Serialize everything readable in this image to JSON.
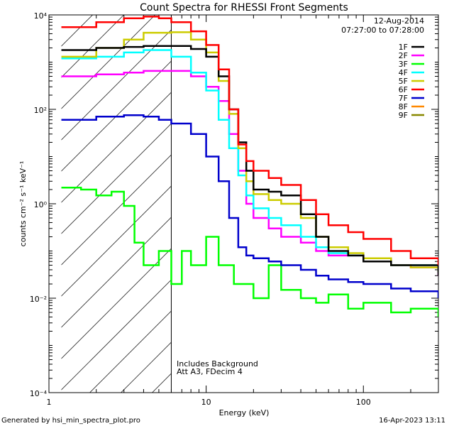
{
  "chart_data": {
    "type": "line",
    "title": "Count Spectra for RHESSI Front Segments",
    "xlabel": "Energy (keV)",
    "ylabel": "counts cm⁻² s⁻¹ keV⁻¹",
    "xscale": "log",
    "yscale": "log",
    "xlim": [
      1,
      300
    ],
    "ylim": [
      0.0001,
      10000
    ],
    "x_ticks": [
      {
        "value": 1,
        "label": "1"
      },
      {
        "value": 10,
        "label": "10"
      },
      {
        "value": 100,
        "label": "100"
      }
    ],
    "y_ticks": [
      {
        "value": 0.0001,
        "label": "10⁻⁴"
      },
      {
        "value": 0.01,
        "label": "10⁻²"
      },
      {
        "value": 1,
        "label": "10⁰"
      },
      {
        "value": 100,
        "label": "10²"
      },
      {
        "value": 10000,
        "label": "10⁴"
      }
    ],
    "date": "12-Aug-2014",
    "time_range": "07:27:00 to 07:28:00",
    "hatch_region_x": [
      1.2,
      6
    ],
    "vertical_line_x": 6,
    "annotations": [
      "Includes Background",
      "Att A3, FDecim 4"
    ],
    "footer_left": "Generated by hsi_min_spectra_plot.pro",
    "footer_right": "16-Apr-2023 13:11",
    "series": [
      {
        "name": "1F",
        "color": "#000000",
        "x": [
          1.2,
          2,
          3,
          4,
          6,
          8,
          10,
          12,
          14,
          16,
          18,
          20,
          25,
          30,
          40,
          50,
          60,
          80,
          100,
          150,
          200,
          300
        ],
        "y": [
          1800,
          2000,
          2100,
          2200,
          2200,
          1900,
          1300,
          500,
          100,
          20,
          5,
          2,
          1.8,
          1.5,
          0.6,
          0.2,
          0.1,
          0.08,
          0.06,
          0.05,
          0.05,
          0.03
        ]
      },
      {
        "name": "2F",
        "color": "#ff00ff",
        "x": [
          1.2,
          2,
          3,
          4,
          6,
          8,
          10,
          12,
          14,
          16,
          18,
          20,
          25,
          30,
          40,
          50,
          60,
          80,
          100,
          150,
          200,
          300
        ],
        "y": [
          500,
          550,
          600,
          650,
          650,
          500,
          300,
          150,
          30,
          5,
          1,
          0.5,
          0.3,
          0.2,
          0.15,
          0.1,
          0.08,
          0.08,
          0.07,
          0.05,
          0.045,
          0.03
        ]
      },
      {
        "name": "3F",
        "color": "#00ff00",
        "x": [
          1.2,
          1.6,
          2,
          2.5,
          3,
          3.5,
          4,
          5,
          6,
          7,
          8,
          9,
          10,
          12,
          15,
          20,
          25,
          30,
          40,
          50,
          60,
          80,
          100,
          150,
          200,
          300
        ],
        "y": [
          2.2,
          2.0,
          1.5,
          1.8,
          0.9,
          0.15,
          0.05,
          0.1,
          0.02,
          0.1,
          0.05,
          0.05,
          0.2,
          0.05,
          0.02,
          0.01,
          0.05,
          0.015,
          0.01,
          0.008,
          0.012,
          0.006,
          0.008,
          0.005,
          0.006,
          0.004
        ]
      },
      {
        "name": "4F",
        "color": "#00ffff",
        "x": [
          1.2,
          2,
          3,
          4,
          6,
          8,
          10,
          12,
          14,
          16,
          18,
          20,
          25,
          30,
          40,
          50,
          60,
          80,
          100,
          150,
          200,
          300
        ],
        "y": [
          1200,
          1300,
          1600,
          1800,
          1300,
          600,
          250,
          60,
          15,
          4,
          1.5,
          0.8,
          0.5,
          0.35,
          0.2,
          0.12,
          0.09,
          0.08,
          0.07,
          0.05,
          0.05,
          0.035
        ]
      },
      {
        "name": "5F",
        "color": "#cccc00",
        "x": [
          1.2,
          2,
          3,
          4,
          6,
          8,
          10,
          12,
          14,
          16,
          18,
          20,
          25,
          30,
          40,
          50,
          60,
          80,
          100,
          150,
          200,
          300
        ],
        "y": [
          1300,
          2000,
          3000,
          4200,
          4300,
          3000,
          1600,
          400,
          80,
          15,
          3,
          1.6,
          1.2,
          1.0,
          0.5,
          0.2,
          0.12,
          0.09,
          0.07,
          0.05,
          0.045,
          0.035
        ]
      },
      {
        "name": "6F",
        "color": "#ff0000",
        "x": [
          1.2,
          2,
          3,
          4,
          5,
          6,
          8,
          10,
          12,
          14,
          16,
          18,
          20,
          25,
          30,
          40,
          50,
          60,
          80,
          100,
          150,
          200,
          300
        ],
        "y": [
          5500,
          7000,
          8500,
          9200,
          8500,
          7000,
          4500,
          2300,
          700,
          100,
          18,
          8,
          5,
          3.5,
          2.5,
          1.2,
          0.6,
          0.35,
          0.25,
          0.18,
          0.1,
          0.07,
          0.05
        ]
      },
      {
        "name": "7F",
        "color": "#0000cc",
        "x": [
          1.2,
          2,
          3,
          4,
          5,
          6,
          8,
          10,
          12,
          14,
          16,
          18,
          20,
          25,
          30,
          40,
          50,
          60,
          80,
          100,
          150,
          200,
          300
        ],
        "y": [
          60,
          70,
          75,
          70,
          60,
          50,
          30,
          10,
          3,
          0.5,
          0.12,
          0.08,
          0.07,
          0.06,
          0.05,
          0.04,
          0.03,
          0.025,
          0.022,
          0.02,
          0.016,
          0.014,
          0.01
        ]
      },
      {
        "name": "8F",
        "color": "#ff8800",
        "x": [],
        "y": []
      },
      {
        "name": "9F",
        "color": "#888800",
        "x": [],
        "y": []
      }
    ]
  }
}
